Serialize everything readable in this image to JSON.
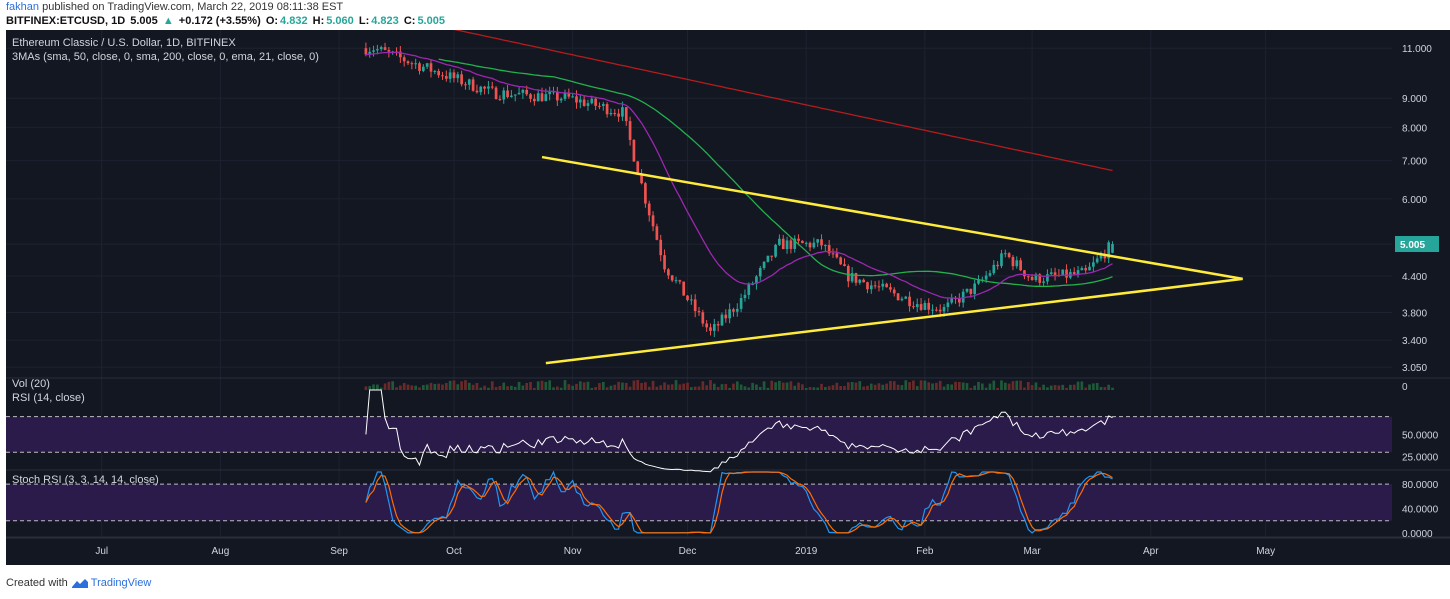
{
  "header": {
    "author": "fakhan",
    "published_text": "published on TradingView.com, March 22, 2019 08:11:38 EST",
    "symbol": "BITFINEX:ETCUSD, 1D",
    "last": "5.005",
    "change": "+0.172 (+3.55%)",
    "change_arrow": "▲",
    "o_label": "O:",
    "o": "4.832",
    "h_label": "H:",
    "h": "5.060",
    "l_label": "L:",
    "l": "4.823",
    "c_label": "C:",
    "c": "5.005"
  },
  "footer": {
    "created_with": "Created with",
    "brand": "TradingView"
  },
  "colors": {
    "background": "#131722",
    "bull": "#26a69a",
    "bear": "#ef5350",
    "sma50": "#22b14c",
    "sma200": "#b71c1c",
    "ema21": "#9c27b0",
    "trendline": "#ffeb3b",
    "rsi": "#ffffff",
    "stoch_k": "#2196f3",
    "stoch_d": "#ff6d00",
    "band": "#2a1b4a"
  },
  "chart_data": {
    "type": "candlestick",
    "title": "Ethereum Classic / U.S. Dollar, 1D, BITFINEX",
    "indicator_label": "3MAs (sma, 50, close, 0, sma, 200, close, 0, ema, 21, close, 0)",
    "price_axis": {
      "scale": "log",
      "ticks": [
        "11.000",
        "9.000",
        "8.000",
        "7.000",
        "6.000",
        "5.000",
        "4.400",
        "3.800",
        "3.400",
        "3.050"
      ],
      "current_price_label": "5.005"
    },
    "x_tick_labels": [
      "Jul",
      "Aug",
      "Sep",
      "Oct",
      "Nov",
      "Dec",
      "2019",
      "Feb",
      "Mar",
      "Apr",
      "May"
    ],
    "key_points": [
      {
        "date": "2018-09-10",
        "close": 11.0
      },
      {
        "date": "2018-10-11",
        "close": 9.2
      },
      {
        "date": "2018-10-31",
        "close": 9.0
      },
      {
        "date": "2018-11-14",
        "close": 8.5
      },
      {
        "date": "2018-11-20",
        "close": 6.0
      },
      {
        "date": "2018-11-25",
        "close": 4.6
      },
      {
        "date": "2018-12-07",
        "close": 3.5
      },
      {
        "date": "2018-12-15",
        "close": 4.0
      },
      {
        "date": "2018-12-25",
        "close": 5.0
      },
      {
        "date": "2019-01-05",
        "close": 5.0
      },
      {
        "date": "2019-01-12",
        "close": 4.4
      },
      {
        "date": "2019-01-30",
        "close": 3.95
      },
      {
        "date": "2019-02-06",
        "close": 3.85
      },
      {
        "date": "2019-02-15",
        "close": 4.25
      },
      {
        "date": "2019-02-22",
        "close": 4.8
      },
      {
        "date": "2019-03-01",
        "close": 4.35
      },
      {
        "date": "2019-03-15",
        "close": 4.45
      },
      {
        "date": "2019-03-22",
        "close": 5.005
      }
    ],
    "trendlines": [
      {
        "name": "upper",
        "points": [
          {
            "date": "2018-10-24",
            "price": 7.1
          },
          {
            "date": "2019-04-25",
            "price": 4.35
          }
        ]
      },
      {
        "name": "lower",
        "points": [
          {
            "date": "2018-10-25",
            "price": 3.1
          },
          {
            "date": "2019-04-25",
            "price": 4.35
          }
        ]
      }
    ],
    "panes": [
      {
        "name": "Vol (20)",
        "ticks": [
          "0"
        ]
      },
      {
        "name": "RSI (14, close)",
        "ticks": [
          "50.0000",
          "25.0000"
        ],
        "band": [
          30,
          70
        ]
      },
      {
        "name": "Stoch RSI (3, 3, 14, 14, close)",
        "ticks": [
          "80.0000",
          "40.0000",
          "0.0000"
        ],
        "band": [
          20,
          80
        ]
      }
    ]
  }
}
